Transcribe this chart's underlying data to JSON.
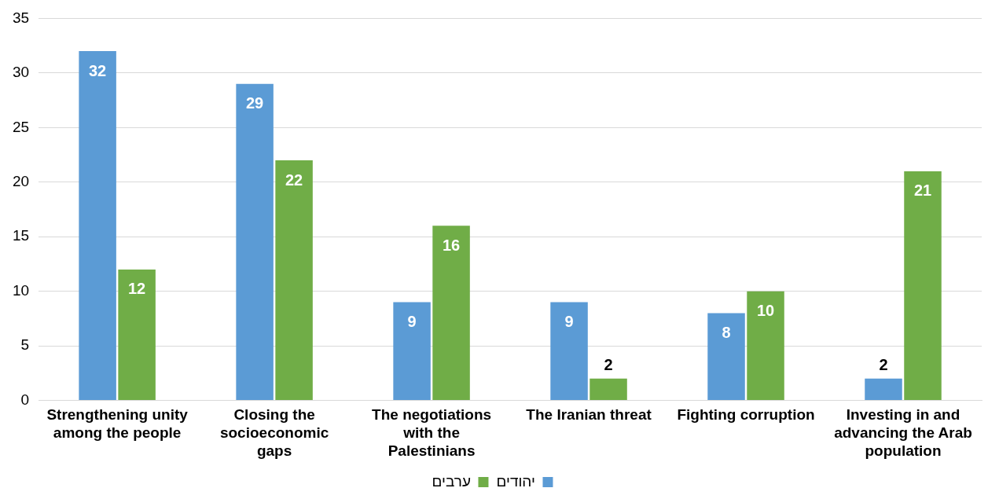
{
  "chart_data": {
    "type": "bar",
    "categories": [
      "Strengthening unity among the people",
      "Closing the socioeconomic gaps",
      "The negotiations with the Palestinians",
      "The Iranian threat",
      "Fighting corruption",
      "Investing in and advancing the Arab population"
    ],
    "series": [
      {
        "name": "יהודים",
        "color": "#5b9bd5",
        "values": [
          32,
          29,
          9,
          9,
          8,
          2
        ]
      },
      {
        "name": "ערבים",
        "color": "#70ad47",
        "values": [
          12,
          22,
          16,
          2,
          10,
          21
        ]
      }
    ],
    "ylim": [
      0,
      35
    ],
    "yticks": [
      0,
      5,
      10,
      15,
      20,
      25,
      30,
      35
    ],
    "grid": "y",
    "legend": "bottom",
    "data_labels": true
  }
}
